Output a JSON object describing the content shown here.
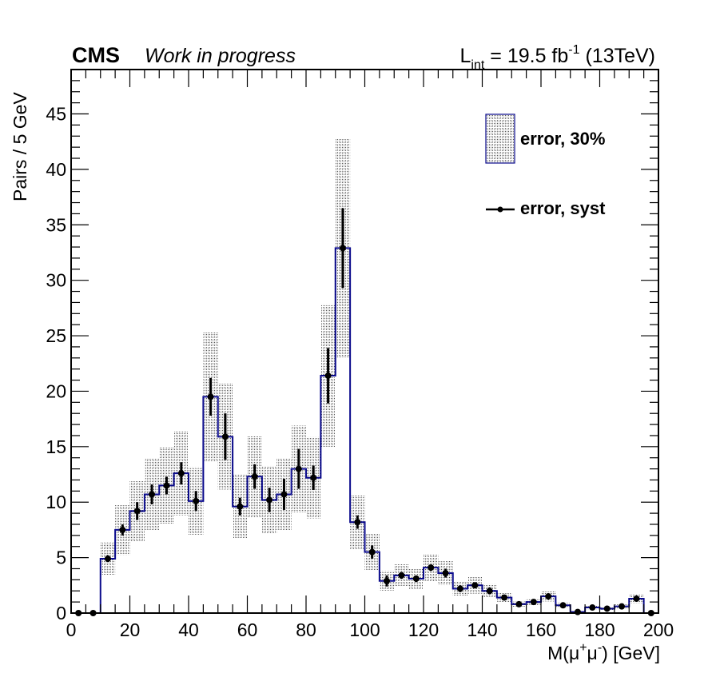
{
  "header": {
    "experiment": "CMS",
    "status": "Work in progress",
    "lumi_prefix": "L",
    "lumi_sub": "int",
    "lumi_value": " = 19.5 fb",
    "lumi_sup": "-1",
    "lumi_energy": " (13TeV)"
  },
  "legend": {
    "band_label": "error, 30%",
    "points_label": "error, syst"
  },
  "axes": {
    "ylabel": "Pairs / 5 GeV",
    "xlabel_prefix": "M(μ",
    "xlabel_sup1": "+",
    "xlabel_mid": "μ",
    "xlabel_sup2": "-",
    "xlabel_suffix": ") [GeV]"
  },
  "chart_data": {
    "type": "histogram",
    "xlim": [
      0,
      200
    ],
    "ylim": [
      0,
      49
    ],
    "bin_width": 5,
    "x_ticks": [
      0,
      20,
      40,
      60,
      80,
      100,
      120,
      140,
      160,
      180,
      200
    ],
    "y_ticks": [
      0,
      5,
      10,
      15,
      20,
      25,
      30,
      35,
      40,
      45
    ],
    "bin_edges": [
      0,
      5,
      10,
      15,
      20,
      25,
      30,
      35,
      40,
      45,
      50,
      55,
      60,
      65,
      70,
      75,
      80,
      85,
      90,
      95,
      100,
      105,
      110,
      115,
      120,
      125,
      130,
      135,
      140,
      145,
      150,
      155,
      160,
      165,
      170,
      175,
      180,
      185,
      190,
      195,
      200
    ],
    "series": [
      {
        "name": "error, 30%",
        "kind": "band",
        "relative_error": 0.3,
        "values": [
          0,
          0,
          4.9,
          7.5,
          9.2,
          10.7,
          11.5,
          12.6,
          10.1,
          19.5,
          15.9,
          9.6,
          12.3,
          10.2,
          10.7,
          13.0,
          12.2,
          21.4,
          32.9,
          8.2,
          5.5,
          2.9,
          3.4,
          3.1,
          4.1,
          3.6,
          2.2,
          2.5,
          2.0,
          1.4,
          0.8,
          1.0,
          1.5,
          0.7,
          0.1,
          0.5,
          0.4,
          0.6,
          1.3,
          0.0
        ]
      },
      {
        "name": "error, syst",
        "kind": "points",
        "values": [
          0,
          0,
          4.9,
          7.5,
          9.2,
          10.7,
          11.5,
          12.6,
          10.1,
          19.5,
          15.9,
          9.6,
          12.3,
          10.2,
          10.7,
          13.0,
          12.2,
          21.4,
          32.9,
          8.2,
          5.5,
          2.9,
          3.4,
          3.1,
          4.1,
          3.6,
          2.2,
          2.5,
          2.0,
          1.4,
          0.8,
          1.0,
          1.5,
          0.7,
          0.1,
          0.5,
          0.4,
          0.6,
          1.3,
          0.0
        ],
        "errors": [
          0,
          0,
          0.3,
          0.5,
          0.8,
          0.9,
          0.8,
          1.0,
          0.9,
          1.7,
          2.1,
          0.8,
          1.1,
          1.1,
          1.4,
          1.8,
          1.1,
          2.5,
          3.6,
          0.6,
          0.6,
          0.5,
          0.3,
          0.3,
          0.3,
          0.4,
          0.3,
          0.2,
          0.3,
          0.2,
          0.1,
          0.1,
          0.2,
          0.1,
          0,
          0.1,
          0.1,
          0.1,
          0.2,
          0
        ]
      }
    ],
    "colors": {
      "outline": "#0a0a8c",
      "band": "#9a9a9a",
      "points": "#000000"
    }
  }
}
